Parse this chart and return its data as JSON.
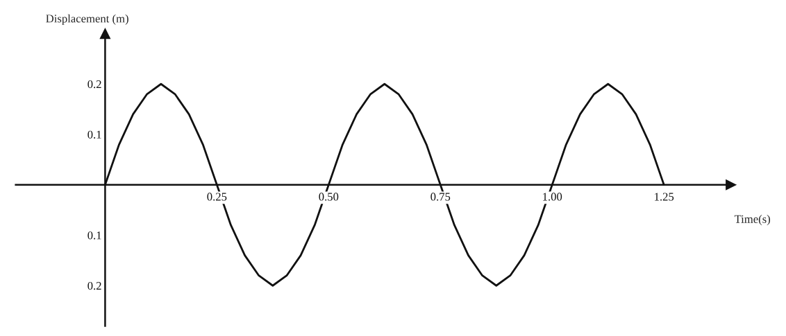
{
  "chart_data": {
    "type": "line",
    "xlabel": "Time(s)",
    "ylabel": "Displacement (m)",
    "x": [
      0,
      0.03125,
      0.0625,
      0.09375,
      0.125,
      0.15625,
      0.1875,
      0.21875,
      0.25,
      0.28125,
      0.3125,
      0.34375,
      0.375,
      0.40625,
      0.4375,
      0.46875,
      0.5,
      0.53125,
      0.5625,
      0.59375,
      0.625,
      0.65625,
      0.6875,
      0.71875,
      0.75,
      0.78125,
      0.8125,
      0.84375,
      0.875,
      0.90625,
      0.9375,
      0.96875,
      1.0,
      1.03125,
      1.0625,
      1.09375,
      1.125,
      1.15625,
      1.1875,
      1.21875,
      1.25
    ],
    "series": [
      {
        "color": "#111111",
        "values": [
          0,
          0.08,
          0.14,
          0.18,
          0.2,
          0.18,
          0.14,
          0.08,
          0,
          -0.08,
          -0.14,
          -0.18,
          -0.2,
          -0.18,
          -0.14,
          -0.08,
          0,
          0.08,
          0.14,
          0.18,
          0.2,
          0.18,
          0.14,
          0.08,
          0,
          -0.08,
          -0.14,
          -0.18,
          -0.2,
          -0.18,
          -0.14,
          -0.08,
          0,
          0.08,
          0.14,
          0.18,
          0.2,
          0.18,
          0.14,
          0.08,
          0
        ]
      }
    ],
    "xlim": [
      -0.2,
      1.4
    ],
    "ylim": [
      -0.28,
      0.3
    ],
    "xticks": [
      {
        "value": 0.25,
        "label": "0.25"
      },
      {
        "value": 0.5,
        "label": "0.50"
      },
      {
        "value": 0.75,
        "label": "0.75"
      },
      {
        "value": 1.0,
        "label": "1.00"
      },
      {
        "value": 1.25,
        "label": "1.25"
      }
    ],
    "yticks": [
      {
        "value": -0.2,
        "label": "0.2"
      },
      {
        "value": -0.1,
        "label": "0.1"
      },
      0.1,
      0.2
    ],
    "grid": false,
    "legend": false,
    "marker": "none",
    "line_style": "solid"
  }
}
